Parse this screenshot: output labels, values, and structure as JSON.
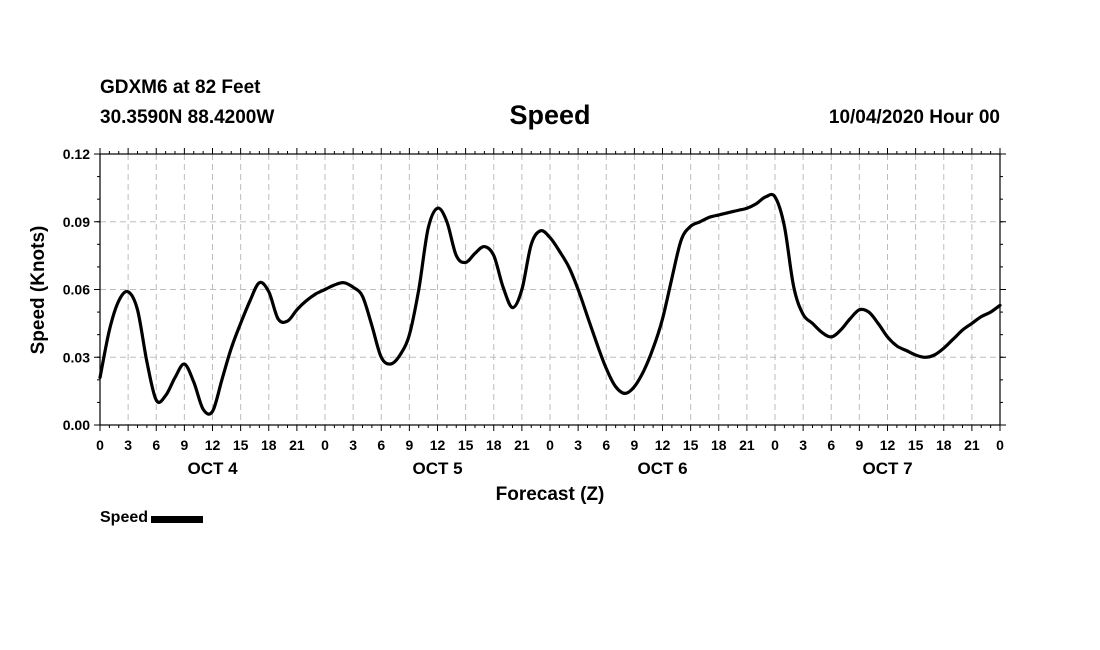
{
  "header": {
    "station": "GDXM6 at 82 Feet",
    "coords": "30.3590N 88.4200W",
    "title": "Speed",
    "run": "10/04/2020 Hour 00"
  },
  "legend": {
    "label": "Speed"
  },
  "colors": {
    "line": "#000000",
    "grid": "#bdbdbd",
    "axis": "#000000"
  },
  "chart_data": {
    "type": "line",
    "title": "Speed",
    "xlabel": "Forecast (Z)",
    "ylabel": "Speed (Knots)",
    "ylim": [
      0,
      0.12
    ],
    "yticks": [
      0.0,
      0.03,
      0.06,
      0.09,
      0.12
    ],
    "ytick_labels": [
      "0.00",
      "0.03",
      "0.06",
      "0.09",
      "0.12"
    ],
    "xlim": [
      0,
      96
    ],
    "xticks": [
      0,
      3,
      6,
      9,
      12,
      15,
      18,
      21,
      24,
      27,
      30,
      33,
      36,
      39,
      42,
      45,
      48,
      51,
      54,
      57,
      60,
      63,
      66,
      69,
      72,
      75,
      78,
      81,
      84,
      87,
      90,
      93,
      96
    ],
    "xtick_labels": [
      "0",
      "3",
      "6",
      "9",
      "12",
      "15",
      "18",
      "21",
      "0",
      "3",
      "6",
      "9",
      "12",
      "15",
      "18",
      "21",
      "0",
      "3",
      "6",
      "9",
      "12",
      "15",
      "18",
      "21",
      "0",
      "3",
      "6",
      "9",
      "12",
      "15",
      "18",
      "21",
      "0"
    ],
    "day_labels": [
      {
        "hour": 12,
        "label": "OCT 4"
      },
      {
        "hour": 36,
        "label": "OCT 5"
      },
      {
        "hour": 60,
        "label": "OCT 6"
      },
      {
        "hour": 84,
        "label": "OCT 7"
      }
    ],
    "grid": true,
    "legend_position": "bottom-left",
    "series": [
      {
        "name": "Speed",
        "x": [
          0,
          1,
          2,
          3,
          4,
          5,
          6,
          7,
          8,
          9,
          10,
          11,
          12,
          13,
          14,
          15,
          16,
          17,
          18,
          19,
          20,
          21,
          22,
          23,
          24,
          25,
          26,
          27,
          28,
          29,
          30,
          31,
          32,
          33,
          34,
          35,
          36,
          37,
          38,
          39,
          40,
          41,
          42,
          43,
          44,
          45,
          46,
          47,
          48,
          49,
          50,
          51,
          52,
          53,
          54,
          55,
          56,
          57,
          58,
          59,
          60,
          61,
          62,
          63,
          64,
          65,
          66,
          67,
          68,
          69,
          70,
          71,
          72,
          73,
          74,
          75,
          76,
          77,
          78,
          79,
          80,
          81,
          82,
          83,
          84,
          85,
          86,
          87,
          88,
          89,
          90,
          91,
          92,
          93,
          94,
          95,
          96
        ],
        "values": [
          0.021,
          0.042,
          0.055,
          0.059,
          0.051,
          0.028,
          0.011,
          0.013,
          0.021,
          0.027,
          0.019,
          0.007,
          0.006,
          0.02,
          0.034,
          0.045,
          0.055,
          0.063,
          0.059,
          0.047,
          0.046,
          0.051,
          0.055,
          0.058,
          0.06,
          0.062,
          0.063,
          0.061,
          0.057,
          0.044,
          0.03,
          0.027,
          0.031,
          0.04,
          0.06,
          0.087,
          0.096,
          0.09,
          0.075,
          0.072,
          0.076,
          0.079,
          0.075,
          0.061,
          0.052,
          0.06,
          0.08,
          0.086,
          0.083,
          0.077,
          0.07,
          0.06,
          0.048,
          0.036,
          0.025,
          0.017,
          0.014,
          0.017,
          0.024,
          0.034,
          0.047,
          0.065,
          0.082,
          0.088,
          0.09,
          0.092,
          0.093,
          0.094,
          0.095,
          0.096,
          0.098,
          0.101,
          0.101,
          0.088,
          0.061,
          0.049,
          0.045,
          0.041,
          0.039,
          0.042,
          0.047,
          0.051,
          0.05,
          0.045,
          0.039,
          0.035,
          0.033,
          0.031,
          0.03,
          0.031,
          0.034,
          0.038,
          0.042,
          0.045,
          0.048,
          0.05,
          0.053
        ]
      }
    ]
  }
}
